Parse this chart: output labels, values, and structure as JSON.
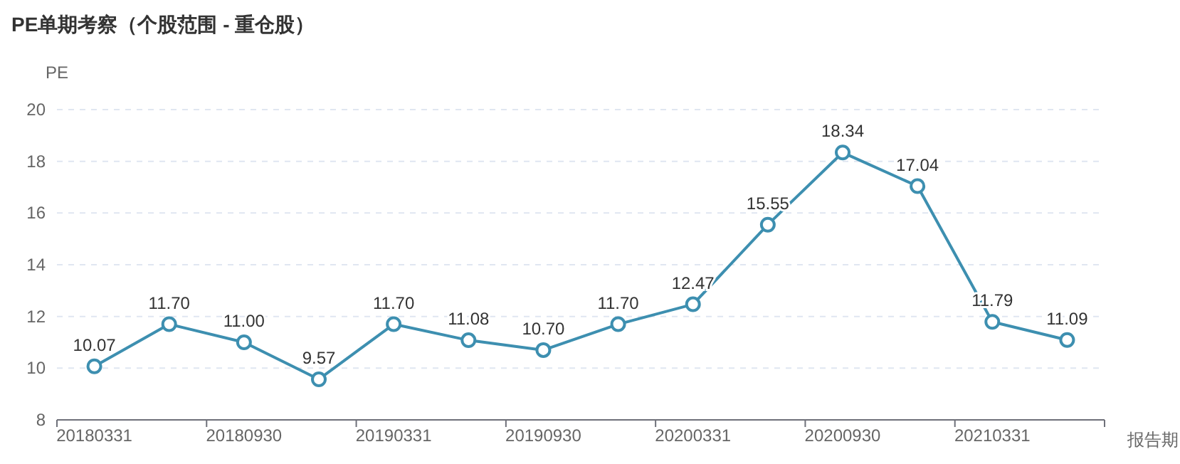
{
  "chart_data": {
    "type": "line",
    "title": "PE单期考察（个股范围 - 重仓股）",
    "ylabel": "PE",
    "xlabel": "报告期",
    "categories": [
      "20180331",
      null,
      "20180930",
      null,
      "20190331",
      null,
      "20190930",
      null,
      "20200331",
      null,
      "20200930",
      null,
      "20210331",
      null
    ],
    "series": [
      {
        "color": "#3d8fb0",
        "values": [
          10.07,
          11.7,
          11.0,
          9.57,
          11.7,
          11.08,
          10.7,
          11.7,
          12.47,
          15.55,
          18.34,
          17.04,
          11.79,
          11.09
        ]
      }
    ],
    "value_labels": [
      "10.07",
      "11.70",
      "11.00",
      "9.57",
      "11.70",
      "11.08",
      "10.70",
      "11.70",
      "12.47",
      "15.55",
      "18.34",
      "17.04",
      "11.79",
      "11.09"
    ],
    "ylim": [
      8,
      20
    ],
    "yticks": [
      8,
      10,
      12,
      14,
      16,
      18,
      20
    ],
    "grid": "y",
    "marker": "circle",
    "line_style": "solid"
  }
}
